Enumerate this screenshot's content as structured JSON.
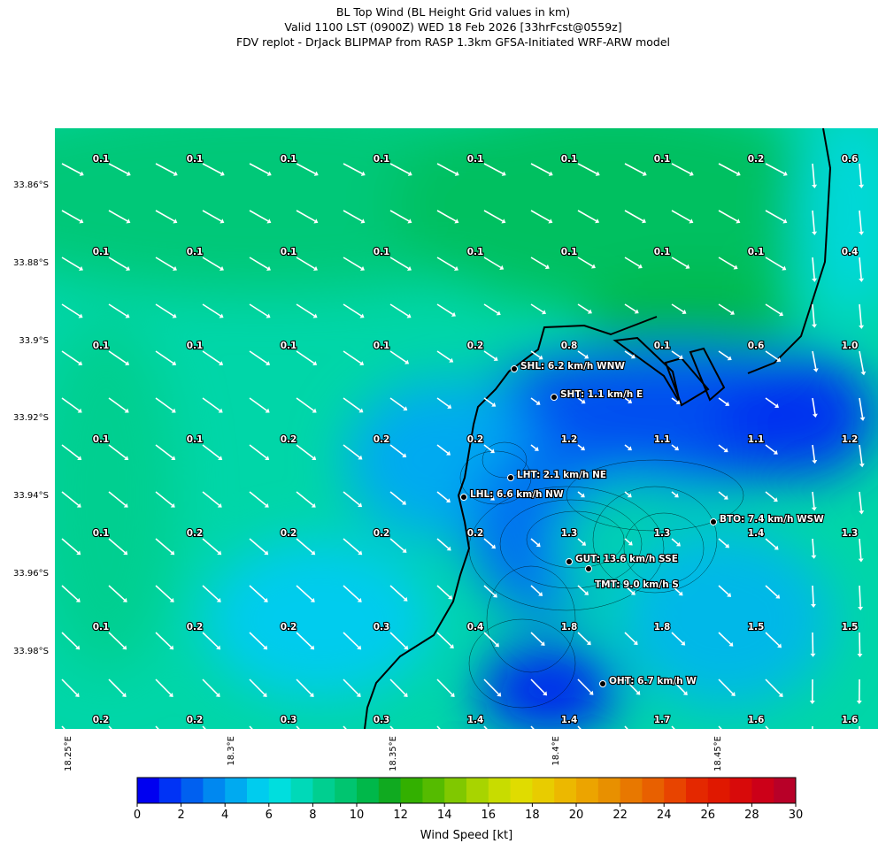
{
  "title": [
    "BL Top Wind (BL Height Grid values in km)",
    "Valid 1100 LST (0900Z) WED 18 Feb 2026 [33hrFcst@0559z]",
    "FDV replot - DrJack BLIPMAP from RASP 1.3km GFSA-Initiated WRF-ARW model"
  ],
  "map": {
    "lat_ticks": [
      "33.86°S",
      "33.88°S",
      "33.9°S",
      "33.92°S",
      "33.94°S",
      "33.96°S",
      "33.98°S"
    ],
    "lon_ticks": [
      "18.25°E",
      "18.3°E",
      "18.35°E",
      "18.4°E",
      "18.45°E"
    ],
    "grid_values": [
      [
        "0.1",
        "0.1",
        "0.1",
        "0.1",
        "0.1",
        "0.1",
        "0.1",
        "0.2",
        "0.6"
      ],
      [
        "0.1",
        "0.1",
        "0.1",
        "0.1",
        "0.1",
        "0.1",
        "0.1",
        "0.1",
        "0.4"
      ],
      [
        "0.1",
        "0.1",
        "0.1",
        "0.1",
        "0.2",
        "0.8",
        "0.1",
        "0.6",
        "1.0"
      ],
      [
        "0.1",
        "0.1",
        "0.2",
        "0.2",
        "0.2",
        "1.2",
        "1.1",
        "1.1",
        "1.2"
      ],
      [
        "0.1",
        "0.2",
        "0.2",
        "0.2",
        "0.2",
        "1.3",
        "1.3",
        "1.4",
        "1.3"
      ],
      [
        "0.1",
        "0.2",
        "0.2",
        "0.3",
        "0.4",
        "1.8",
        "1.8",
        "1.5",
        "1.5"
      ],
      [
        "0.2",
        "0.2",
        "0.3",
        "0.3",
        "1.4",
        "1.4",
        "1.7",
        "1.6",
        "1.6"
      ]
    ],
    "stations": [
      "SHL: 6.2 km/h WNW",
      "SHT: 1.1 km/h E",
      "LHT: 2.1 km/h NE",
      "LHL: 6.6 km/h NW",
      "BTO: 7.4 km/h WSW",
      "GUT: 13.6 km/h SSE",
      "TMT: 9.0 km/h S",
      "OHT: 6.7 km/h W"
    ]
  },
  "colorbar": {
    "label": "Wind Speed [kt]",
    "range": [
      0,
      30
    ],
    "ticks": [
      0,
      2,
      4,
      6,
      8,
      10,
      12,
      14,
      16,
      18,
      20,
      22,
      24,
      26,
      28,
      30
    ],
    "colors": [
      "#0000f0",
      "#0033f5",
      "#0060f0",
      "#0088f0",
      "#00aaf0",
      "#00ccee",
      "#00dede",
      "#00d9b8",
      "#00cf90",
      "#00c570",
      "#00b84a",
      "#10aa20",
      "#33b000",
      "#55bb00",
      "#80c800",
      "#a8d400",
      "#c8dc00",
      "#e0dc00",
      "#e8cc00",
      "#ecb800",
      "#eca400",
      "#e89000",
      "#e87800",
      "#e86000",
      "#e84400",
      "#e42800",
      "#e01800",
      "#d80a0a",
      "#cc0018",
      "#b80028"
    ]
  }
}
